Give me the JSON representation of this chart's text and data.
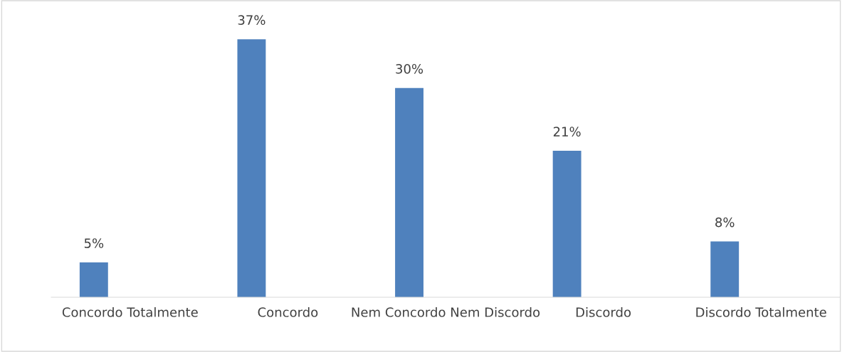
{
  "chart_data": {
    "type": "bar",
    "categories": [
      "Concordo Totalmente",
      "Concordo",
      "Nem Concordo Nem Discordo",
      "Discordo",
      "Discordo Totalmente"
    ],
    "values": [
      5,
      37,
      30,
      21,
      8
    ],
    "value_labels": [
      "5%",
      "37%",
      "30%",
      "21%",
      "8%"
    ],
    "color": "#4f81bd",
    "grid": false,
    "legend": false
  }
}
